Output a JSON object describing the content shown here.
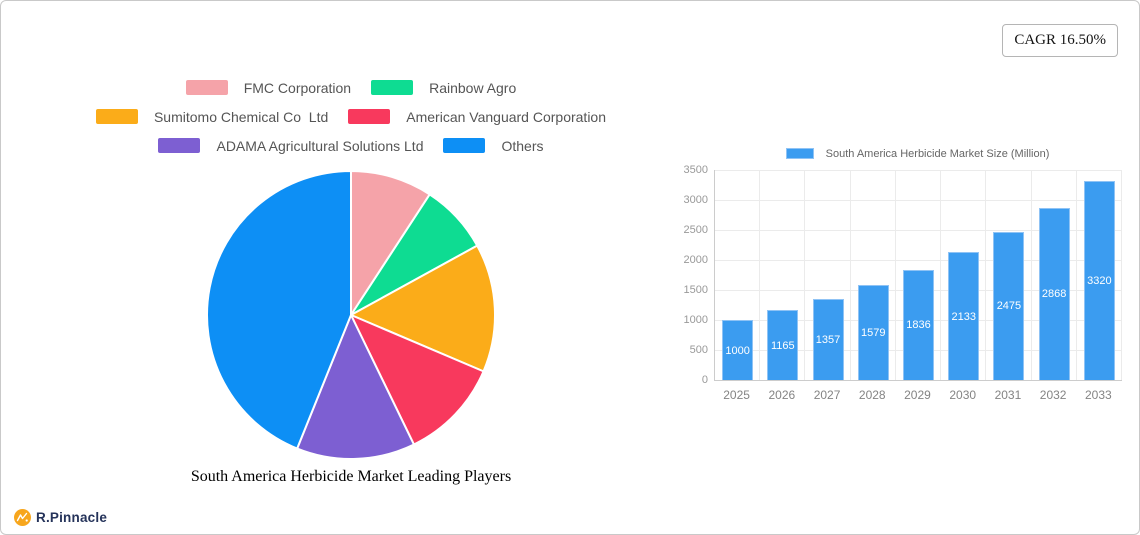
{
  "frame": {
    "cagr_label": "CAGR 16.50%"
  },
  "branding": {
    "name": "R.Pinnacle",
    "icon": "pinnacle-circle-icon",
    "icon_color": "#f7a61d",
    "text_color": "#25335a"
  },
  "chart_data": [
    {
      "type": "pie",
      "title": "South America Herbicide Market Leading Players",
      "labels": [
        "FMC Corporation",
        "Rainbow Agro",
        "Sumitomo Chemical Co  Ltd",
        "American Vanguard Corporation",
        "ADAMA Agricultural Solutions Ltd",
        "Others"
      ],
      "values_percent": [
        9.2,
        7.8,
        14.4,
        11.4,
        13.3,
        43.9
      ],
      "colors": [
        "#f5a3a9",
        "#0edc92",
        "#fbac19",
        "#f8395d",
        "#7d5fd2",
        "#0d8ff5"
      ],
      "legend_rows": [
        [
          0,
          1
        ],
        [
          2,
          3
        ],
        [
          4,
          5
        ]
      ],
      "legend_position": "top",
      "start_angle_deg": -90,
      "direction": "clockwise",
      "slice_border_color": "#ffffff"
    },
    {
      "type": "bar",
      "legend_label": "South America Herbicide Market Size (Million)",
      "categories": [
        "2025",
        "2026",
        "2027",
        "2028",
        "2029",
        "2030",
        "2031",
        "2032",
        "2033"
      ],
      "values": [
        1000,
        1165,
        1357,
        1579,
        1836,
        2133,
        2475,
        2868,
        3320
      ],
      "ylim": [
        0,
        3500
      ],
      "ytick_step": 500,
      "bar_color": "#3b9cf0",
      "bar_border_color": "#8fc3f5",
      "value_label_color": "#ffffff",
      "grid": true,
      "legend_position": "top"
    }
  ]
}
